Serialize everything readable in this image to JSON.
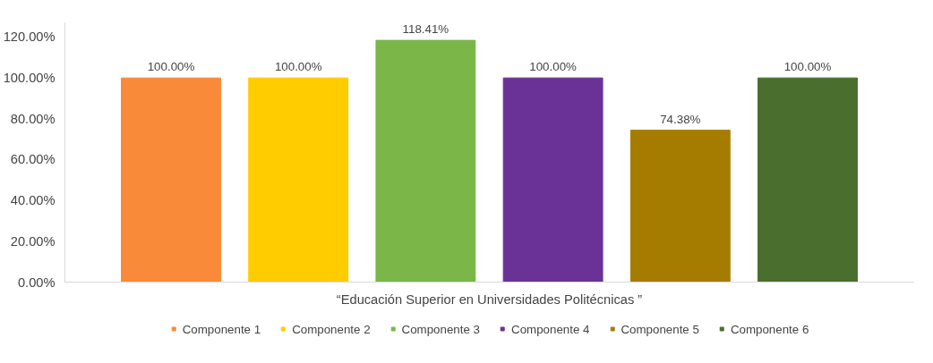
{
  "chart_data": {
    "type": "bar",
    "categories": [
      "“Educación Superior en Universidades Politécnicas ”"
    ],
    "series": [
      {
        "name": "Componente 1",
        "color": "#f98a3a",
        "values": [
          100
        ],
        "value_labels": [
          "100.00%"
        ]
      },
      {
        "name": "Componente 2",
        "color": "#ffcc00",
        "values": [
          100
        ],
        "value_labels": [
          "100.00%"
        ]
      },
      {
        "name": "Componente 3",
        "color": "#7ab648",
        "values": [
          118.41
        ],
        "value_labels": [
          "118.41%"
        ]
      },
      {
        "name": "Componente 4",
        "color": "#6a3296",
        "values": [
          100
        ],
        "value_labels": [
          "100.00%"
        ]
      },
      {
        "name": "Componente 5",
        "color": "#a67c00",
        "values": [
          74.38
        ],
        "value_labels": [
          "74.38%"
        ]
      },
      {
        "name": "Componente 6",
        "color": "#4a6e2e",
        "values": [
          100
        ],
        "value_labels": [
          "100.00%"
        ]
      }
    ],
    "ylim": [
      0,
      127
    ],
    "yticks": [
      {
        "value": 0,
        "label": "0.00%"
      },
      {
        "value": 20,
        "label": "20.00%"
      },
      {
        "value": 40,
        "label": "40.00%"
      },
      {
        "value": 60,
        "label": "60.00%"
      },
      {
        "value": 80,
        "label": "80.00%"
      },
      {
        "value": 100,
        "label": "100.00%"
      },
      {
        "value": 120,
        "label": "120.00%"
      }
    ],
    "grid": false,
    "legend": "bottom"
  }
}
